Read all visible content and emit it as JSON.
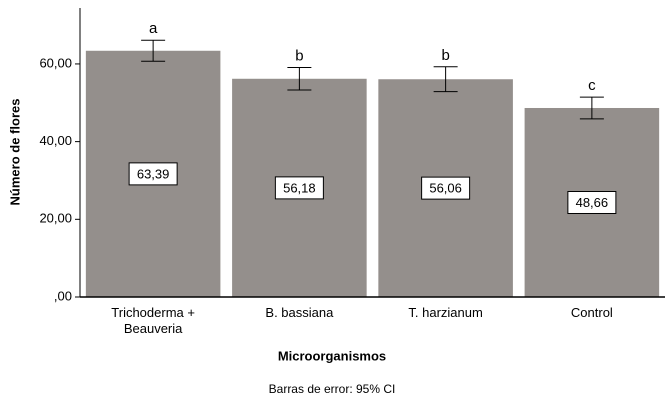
{
  "chart_data": {
    "type": "bar",
    "categories": [
      "Trichoderma + Beauveria",
      "B. bassiana",
      "T. harzianum",
      "Control"
    ],
    "values": [
      63.39,
      56.18,
      56.06,
      48.66
    ],
    "value_labels": [
      "63,39",
      "56,18",
      "56,06",
      "48,66"
    ],
    "errors": [
      2.7,
      2.9,
      3.2,
      2.8
    ],
    "annotations": [
      "a",
      "b",
      "b",
      "c"
    ],
    "color": "#948f8c",
    "x_label": "Microorganismos",
    "y_label": "Número de flores",
    "note": "Barras de error: 95% CI",
    "ylim": [
      0,
      74.4
    ],
    "yticks": [
      {
        "value": 0,
        "label": ",00"
      },
      {
        "value": 20,
        "label": "20,00"
      },
      {
        "value": 40,
        "label": "40,00"
      },
      {
        "value": 60,
        "label": "60,00"
      }
    ]
  }
}
